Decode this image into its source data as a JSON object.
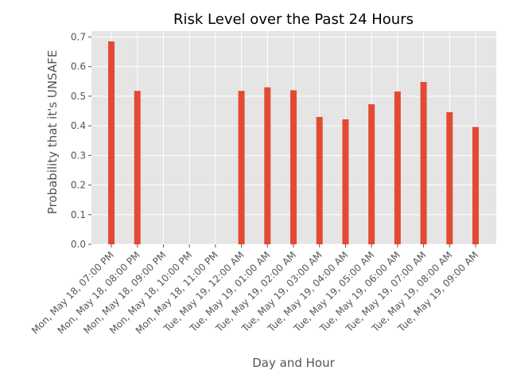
{
  "chart_data": {
    "type": "bar",
    "title": "Risk Level over the Past 24 Hours",
    "xlabel": "Day and Hour",
    "ylabel": "Probability that it's UNSAFE",
    "categories": [
      "Mon, May 18, 07:00 PM",
      "Mon, May 18, 08:00 PM",
      "Mon, May 18, 09:00 PM",
      "Mon, May 18, 10:00 PM",
      "Mon, May 18, 11:00 PM",
      "Tue, May 19, 12:00 AM",
      "Tue, May 19, 01:00 AM",
      "Tue, May 19, 02:00 AM",
      "Tue, May 19, 03:00 AM",
      "Tue, May 19, 04:00 AM",
      "Tue, May 19, 05:00 AM",
      "Tue, May 19, 06:00 AM",
      "Tue, May 19, 07:00 AM",
      "Tue, May 19, 08:00 AM",
      "Tue, May 19, 09:00 AM"
    ],
    "values": [
      0.685,
      0.518,
      0,
      0,
      0,
      0.518,
      0.53,
      0.52,
      0.43,
      0.422,
      0.473,
      0.516,
      0.548,
      0.446,
      0.396
    ],
    "yticks": [
      "0.0",
      "0.1",
      "0.2",
      "0.3",
      "0.4",
      "0.5",
      "0.6",
      "0.7"
    ],
    "ylim": [
      0,
      0.72
    ],
    "grid": true,
    "colors": {
      "bar": "#e24a33",
      "plot_background": "#e5e5e5",
      "grid": "#ffffff"
    }
  }
}
